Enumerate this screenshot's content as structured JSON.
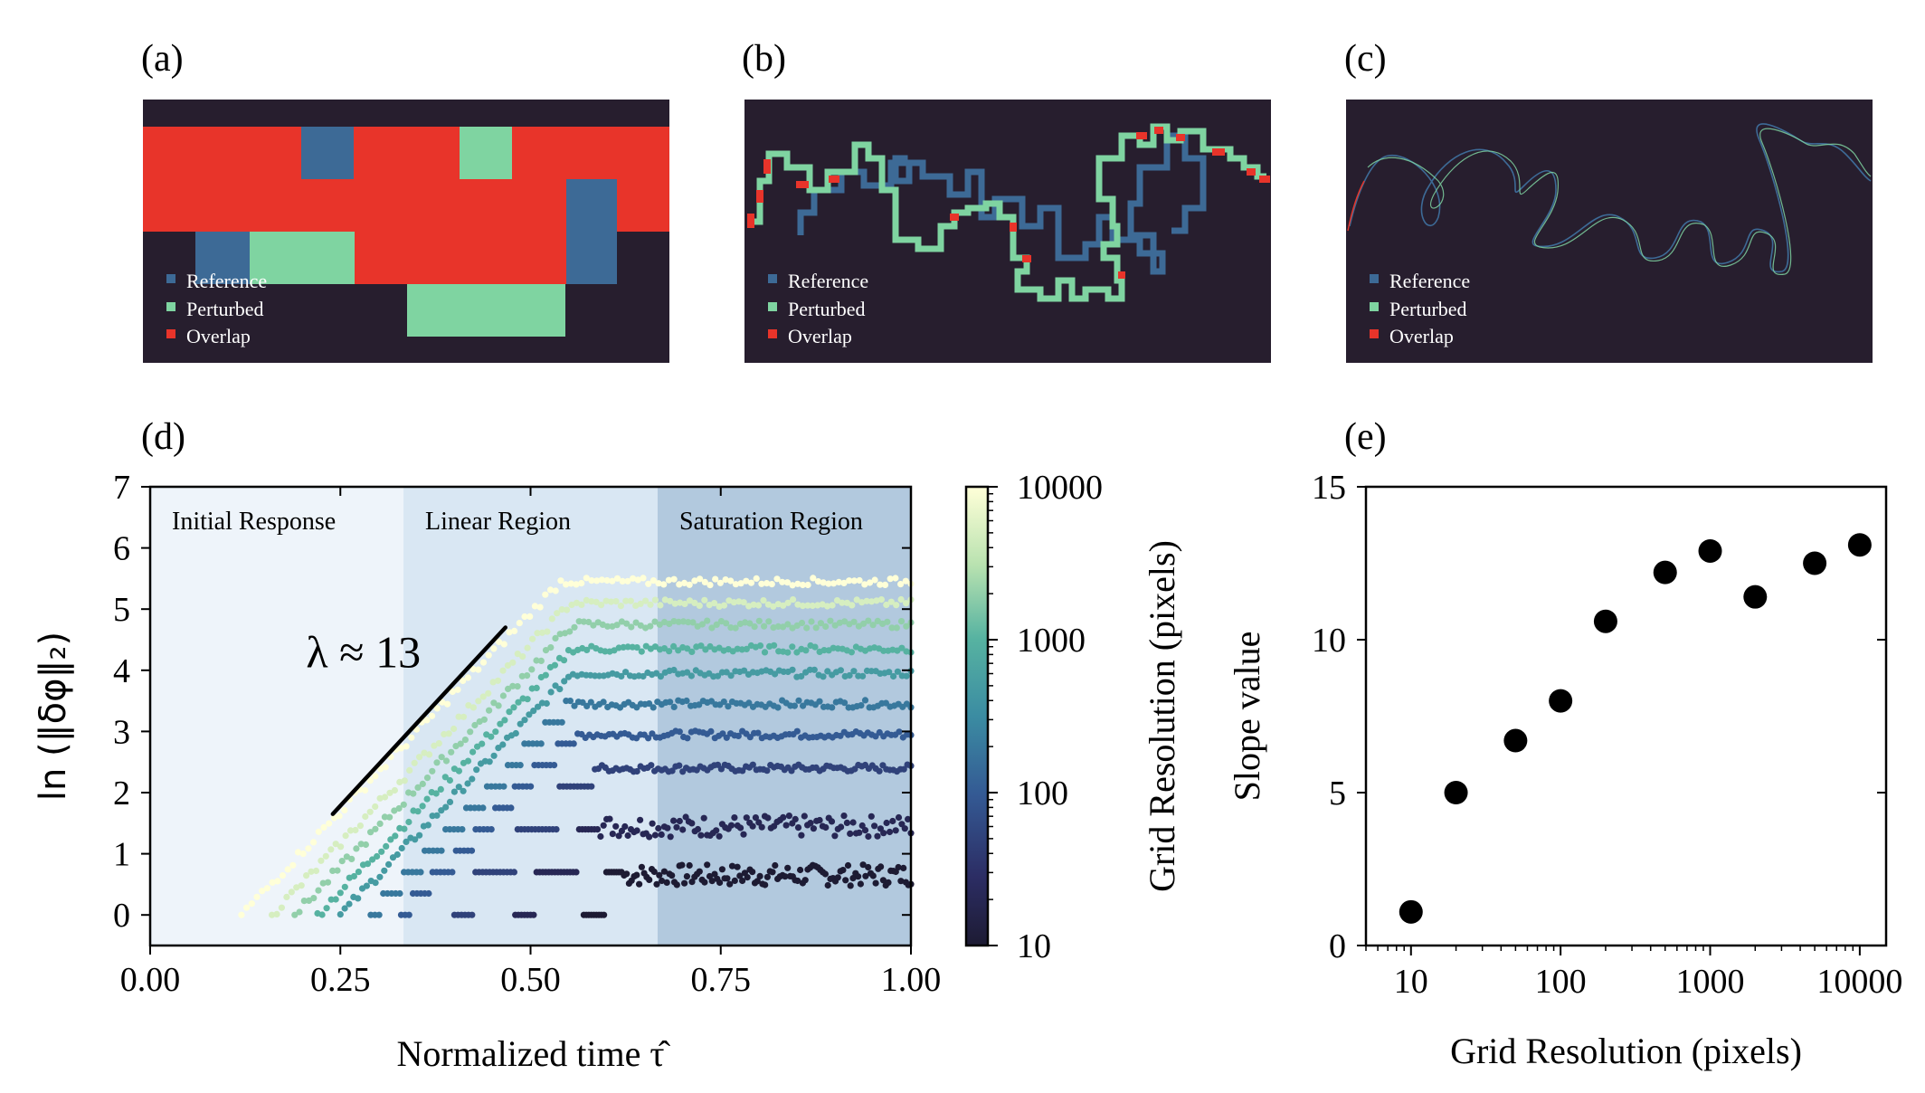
{
  "colors": {
    "background": "#ffffff",
    "panel_bg": "#271e2e",
    "reference": "#3d6a96",
    "perturbed": "#7fd4a1",
    "overlap": "#e8342a",
    "region_initial": "#eef4fa",
    "region_linear": "#d9e7f3",
    "region_saturation": "#b2c9de",
    "fit_line": "#000000",
    "points": "#000000"
  },
  "panel_a": {
    "label": "(a)",
    "legend": [
      "Reference",
      "Perturbed",
      "Overlap"
    ]
  },
  "panel_b": {
    "label": "(b)",
    "legend": [
      "Reference",
      "Perturbed",
      "Overlap"
    ]
  },
  "panel_c": {
    "label": "(c)",
    "legend": [
      "Reference",
      "Perturbed",
      "Overlap"
    ]
  },
  "chart_data": [
    {
      "panel": "(d)",
      "type": "scatter",
      "xlabel": "Normalized time τ̂",
      "ylabel": "ln (‖δφ‖₂)",
      "xlim": [
        0.0,
        1.0
      ],
      "ylim": [
        -0.5,
        7.0
      ],
      "xticks": [
        "0.00",
        "0.25",
        "0.50",
        "0.75",
        "1.00"
      ],
      "yticks": [
        "0",
        "1",
        "2",
        "3",
        "4",
        "5",
        "6",
        "7"
      ],
      "regions": [
        {
          "label": "Initial Response",
          "x_range": [
            0.0,
            0.333
          ]
        },
        {
          "label": "Linear Region",
          "x_range": [
            0.333,
            0.667
          ]
        },
        {
          "label": "Saturation Region",
          "x_range": [
            0.667,
            1.0
          ]
        }
      ],
      "annotation": {
        "text": "λ ≈ 13",
        "fit_line": {
          "x": [
            0.24,
            0.467
          ],
          "y": [
            1.65,
            4.7
          ]
        }
      },
      "colorbar": {
        "label": "Grid Resolution (pixels)",
        "scale": "log",
        "ticks": [
          "10",
          "100",
          "1000",
          "10000"
        ],
        "range": [
          10,
          10000
        ],
        "colormap": "YlGnBu_r"
      },
      "series_params": [
        {
          "resolution": 10,
          "onset": 0.57,
          "plateau": 0.65
        },
        {
          "resolution": 20,
          "onset": 0.48,
          "plateau": 1.45
        },
        {
          "resolution": 50,
          "onset": 0.4,
          "plateau": 2.4
        },
        {
          "resolution": 100,
          "onset": 0.33,
          "plateau": 2.95
        },
        {
          "resolution": 200,
          "onset": 0.29,
          "plateau": 3.45
        },
        {
          "resolution": 500,
          "onset": 0.25,
          "plateau": 3.95
        },
        {
          "resolution": 1000,
          "onset": 0.22,
          "plateau": 4.35
        },
        {
          "resolution": 2000,
          "onset": 0.19,
          "plateau": 4.75
        },
        {
          "resolution": 5000,
          "onset": 0.16,
          "plateau": 5.1
        },
        {
          "resolution": 10000,
          "onset": 0.12,
          "plateau": 5.45
        }
      ]
    },
    {
      "panel": "(e)",
      "type": "scatter",
      "xlabel": "Grid Resolution (pixels)",
      "ylabel": "Slope value",
      "xscale": "log",
      "xlim": [
        5,
        15000
      ],
      "ylim": [
        0,
        15
      ],
      "xticks": [
        "10",
        "100",
        "1000",
        "10000"
      ],
      "yticks": [
        "0",
        "5",
        "10",
        "15"
      ],
      "x": [
        10,
        20,
        50,
        100,
        200,
        500,
        1000,
        2000,
        5000,
        10000
      ],
      "y": [
        1.1,
        5.0,
        6.7,
        8.0,
        10.6,
        12.2,
        12.9,
        11.4,
        12.5,
        13.1
      ]
    }
  ]
}
